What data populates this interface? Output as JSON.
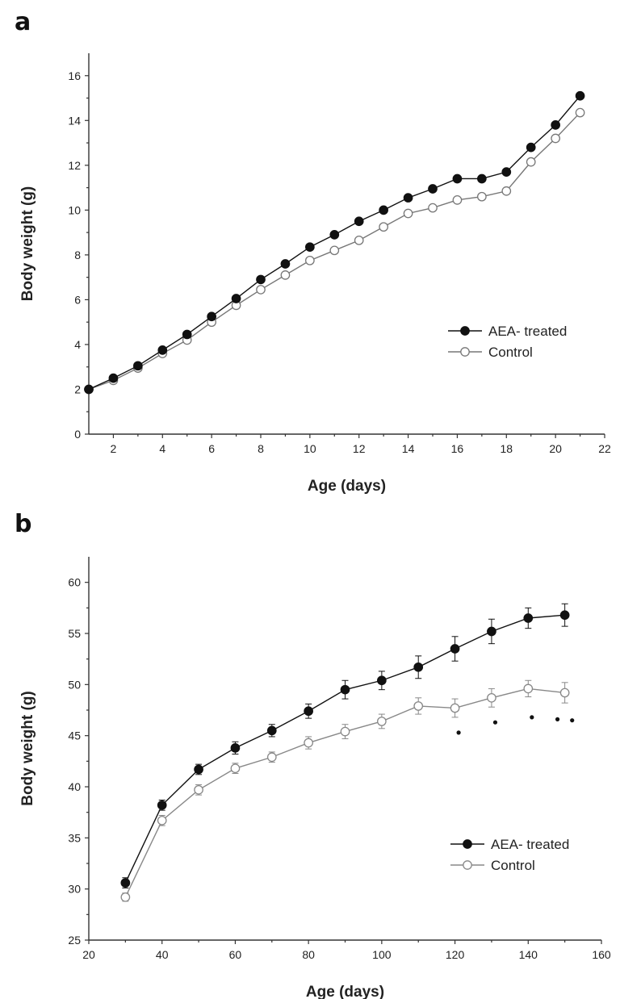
{
  "panels": {
    "a": "a",
    "b": "b"
  },
  "chart_data": [
    {
      "type": "line",
      "panel": "a",
      "xlabel": "Age (days)",
      "ylabel": "Body weight (g)",
      "xlim": [
        1,
        22
      ],
      "ylim": [
        0,
        17
      ],
      "xticks": [
        2,
        4,
        6,
        8,
        10,
        12,
        14,
        16,
        18,
        20,
        22
      ],
      "yticks": [
        0,
        2,
        4,
        6,
        8,
        10,
        12,
        14,
        16
      ],
      "legend_position": "right",
      "x": [
        1,
        2,
        3,
        4,
        5,
        6,
        7,
        8,
        9,
        10,
        11,
        12,
        13,
        14,
        15,
        16,
        17,
        18,
        19,
        20,
        21
      ],
      "series": [
        {
          "name": "AEA- treated",
          "marker": "filled-circle",
          "color": "#111111",
          "values": [
            2.0,
            2.5,
            3.05,
            3.75,
            4.45,
            5.25,
            6.05,
            6.9,
            7.6,
            8.35,
            8.9,
            9.5,
            10.0,
            10.55,
            10.95,
            11.4,
            11.4,
            11.7,
            12.8,
            13.8,
            15.1
          ]
        },
        {
          "name": "Control",
          "marker": "open-circle",
          "color": "#777777",
          "values": [
            2.0,
            2.4,
            2.95,
            3.6,
            4.2,
            5.0,
            5.75,
            6.45,
            7.1,
            7.75,
            8.2,
            8.65,
            9.25,
            9.85,
            10.1,
            10.45,
            10.6,
            10.85,
            12.15,
            13.2,
            14.35
          ]
        }
      ]
    },
    {
      "type": "line",
      "panel": "b",
      "xlabel": "Age (days)",
      "ylabel": "Body weight (g)",
      "xlim": [
        20,
        160
      ],
      "ylim": [
        25,
        62.5
      ],
      "xticks": [
        20,
        40,
        60,
        80,
        100,
        120,
        140,
        160
      ],
      "yticks": [
        25,
        30,
        35,
        40,
        45,
        50,
        55,
        60
      ],
      "legend_position": "bottom-right",
      "x": [
        30,
        40,
        50,
        60,
        70,
        80,
        90,
        100,
        110,
        120,
        130,
        140,
        150
      ],
      "series": [
        {
          "name": "AEA- treated",
          "marker": "filled-circle",
          "color": "#111111",
          "values": [
            30.6,
            38.2,
            41.7,
            43.8,
            45.5,
            47.4,
            49.5,
            50.4,
            51.7,
            53.5,
            55.2,
            56.5,
            56.8
          ],
          "errors": [
            0.5,
            0.5,
            0.5,
            0.6,
            0.6,
            0.7,
            0.9,
            0.9,
            1.1,
            1.2,
            1.2,
            1.0,
            1.1
          ]
        },
        {
          "name": "Control",
          "marker": "open-circle",
          "color": "#888888",
          "values": [
            29.2,
            36.7,
            39.7,
            41.8,
            42.9,
            44.3,
            45.4,
            46.4,
            47.9,
            47.7,
            48.7,
            49.6,
            49.2
          ],
          "errors": [
            0.4,
            0.5,
            0.5,
            0.5,
            0.5,
            0.6,
            0.7,
            0.7,
            0.8,
            0.9,
            0.9,
            0.8,
            1.0
          ]
        }
      ],
      "significance_markers": [
        {
          "x": 121,
          "y": 45.3,
          "label": "*"
        },
        {
          "x": 131,
          "y": 46.3,
          "label": "*"
        },
        {
          "x": 141,
          "y": 46.8,
          "label": "*"
        },
        {
          "x": 148,
          "y": 46.6,
          "label": "*"
        },
        {
          "x": 152,
          "y": 46.5,
          "label": "*"
        }
      ]
    }
  ]
}
